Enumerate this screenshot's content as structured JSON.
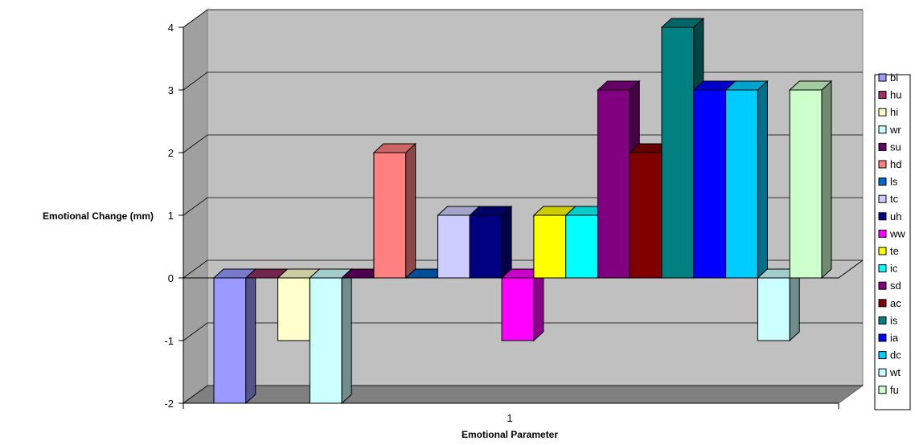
{
  "chart_data": {
    "type": "bar",
    "style": "3d-clustered-column",
    "categories": [
      "1"
    ],
    "xlabel": "Emotional Parameter",
    "ylabel": "Emotional Change (mm)",
    "ylim": [
      -2,
      4
    ],
    "yticks": [
      "4",
      "3",
      "2",
      "1",
      "0",
      "-1",
      "-2"
    ],
    "grid": true,
    "legend_position": "right",
    "series": [
      {
        "name": "bi",
        "values": [
          -2
        ],
        "color": "#9999FF"
      },
      {
        "name": "hu",
        "values": [
          0
        ],
        "color": "#993366"
      },
      {
        "name": "hi",
        "values": [
          -1
        ],
        "color": "#FFFFCC"
      },
      {
        "name": "wr",
        "values": [
          -2
        ],
        "color": "#CCFFFF"
      },
      {
        "name": "su",
        "values": [
          0
        ],
        "color": "#660066"
      },
      {
        "name": "hd",
        "values": [
          2
        ],
        "color": "#FF8080"
      },
      {
        "name": "ls",
        "values": [
          0
        ],
        "color": "#0066CC"
      },
      {
        "name": "tc",
        "values": [
          1
        ],
        "color": "#CCCCFF"
      },
      {
        "name": "uh",
        "values": [
          1
        ],
        "color": "#000080"
      },
      {
        "name": "ww",
        "values": [
          -1
        ],
        "color": "#FF00FF"
      },
      {
        "name": "te",
        "values": [
          1
        ],
        "color": "#FFFF00"
      },
      {
        "name": "ic",
        "values": [
          1
        ],
        "color": "#00FFFF"
      },
      {
        "name": "sd",
        "values": [
          3
        ],
        "color": "#800080"
      },
      {
        "name": "ac",
        "values": [
          2
        ],
        "color": "#800000"
      },
      {
        "name": "is",
        "values": [
          4
        ],
        "color": "#008080"
      },
      {
        "name": "ia",
        "values": [
          3
        ],
        "color": "#0000FF"
      },
      {
        "name": "dc",
        "values": [
          3
        ],
        "color": "#00CCFF"
      },
      {
        "name": "wt",
        "values": [
          -1
        ],
        "color": "#CCFFFF"
      },
      {
        "name": "fu",
        "values": [
          3
        ],
        "color": "#CCFFCC"
      }
    ],
    "colors": {
      "wall": "#C0C0C0",
      "floor": "#808080",
      "gridline": "#000000"
    }
  }
}
